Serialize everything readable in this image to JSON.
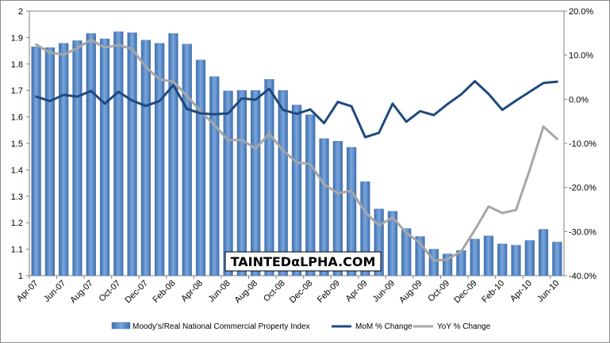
{
  "chart_data": {
    "type": "bar",
    "title": "",
    "xlabel": "",
    "ylabel": "",
    "grid": false,
    "legend_position": "bottom",
    "watermark_text": "TAINTEDαLPHA.COM",
    "categories": [
      "Apr-07",
      "May-07",
      "Jun-07",
      "Jul-07",
      "Aug-07",
      "Sep-07",
      "Oct-07",
      "Nov-07",
      "Dec-07",
      "Jan-08",
      "Feb-08",
      "Mar-08",
      "Apr-08",
      "May-08",
      "Jun-08",
      "Jul-08",
      "Aug-08",
      "Sep-08",
      "Oct-08",
      "Nov-08",
      "Dec-08",
      "Jan-09",
      "Feb-09",
      "Mar-09",
      "Apr-09",
      "May-09",
      "Jun-09",
      "Jul-09",
      "Aug-09",
      "Sep-09",
      "Oct-09",
      "Nov-09",
      "Dec-09",
      "Jan-10",
      "Feb-10",
      "Mar-10",
      "Apr-10",
      "May-10",
      "Jun-10"
    ],
    "x_tick_labels": [
      "Apr-07",
      "Jun-07",
      "Aug-07",
      "Oct-07",
      "Dec-07",
      "Feb-08",
      "Apr-08",
      "Jun-08",
      "Aug-08",
      "Oct-08",
      "Dec-08",
      "Feb-09",
      "Apr-09",
      "Jun-09",
      "Aug-09",
      "Oct-09",
      "Dec-09",
      "Feb-10",
      "Apr-10",
      "Jun-10"
    ],
    "y_left": {
      "range": [
        1,
        2
      ],
      "ticks": [
        "1",
        "1.1",
        "1.2",
        "1.3",
        "1.4",
        "1.5",
        "1.6",
        "1.7",
        "1.8",
        "1.9",
        "2"
      ]
    },
    "y_right": {
      "range": [
        -40,
        20
      ],
      "unit": "%",
      "ticks": [
        "-40.0%",
        "-30.0%",
        "-20.0%",
        "-10.0%",
        "0.0%",
        "10.0%",
        "20.0%"
      ]
    },
    "series": [
      {
        "name": "Moody's/Real National Commercial Property Index",
        "kind": "bar",
        "axis": "left",
        "color": "#4f81bd",
        "values": [
          1.865,
          1.862,
          1.878,
          1.888,
          1.915,
          1.895,
          1.922,
          1.918,
          1.89,
          1.878,
          1.915,
          1.875,
          1.815,
          1.752,
          1.698,
          1.7,
          1.7,
          1.742,
          1.7,
          1.645,
          1.608,
          1.518,
          1.508,
          1.485,
          1.355,
          1.252,
          1.243,
          1.178,
          1.148,
          1.1,
          1.082,
          1.095,
          1.138,
          1.15,
          1.12,
          1.115,
          1.133,
          1.175,
          1.127
        ]
      },
      {
        "name": "MoM % Change",
        "kind": "line",
        "axis": "right",
        "color": "#1f497d",
        "values": [
          0.6,
          -0.4,
          1.0,
          0.6,
          1.9,
          -1.0,
          1.7,
          -0.3,
          -1.5,
          -0.4,
          3.2,
          -2.2,
          -3.2,
          -3.4,
          -3.2,
          0.2,
          -0.1,
          2.4,
          -2.4,
          -3.3,
          -2.3,
          -5.4,
          -0.6,
          -1.6,
          -8.6,
          -7.6,
          -1.0,
          -5.1,
          -2.7,
          -3.6,
          -1.1,
          1.1,
          4.1,
          1.2,
          -2.4,
          -0.3,
          1.7,
          3.7,
          4.0
        ]
      },
      {
        "name": "YoY % Change",
        "kind": "line",
        "axis": "right",
        "color": "#a6a6a6",
        "values": [
          12.4,
          10.6,
          10.1,
          11.6,
          13.5,
          11.7,
          12.3,
          11.4,
          7.3,
          4.5,
          4.0,
          0.8,
          -2.8,
          -5.8,
          -9.3,
          -9.2,
          -11.2,
          -7.8,
          -11.6,
          -14.3,
          -14.7,
          -19.3,
          -21.3,
          -20.8,
          -25.6,
          -28.6,
          -26.8,
          -30.3,
          -32.6,
          -36.6,
          -36.3,
          -34.5,
          -29.6,
          -24.3,
          -25.8,
          -25.1,
          -16.0,
          -6.2,
          -9.0
        ]
      }
    ]
  }
}
